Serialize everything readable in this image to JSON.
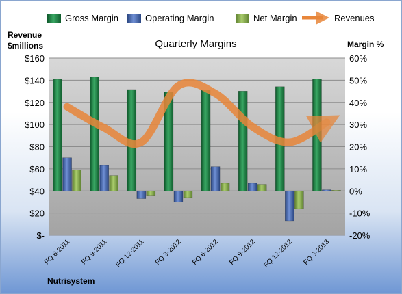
{
  "chart_data": {
    "type": "bar",
    "title": "Quarterly Margins",
    "left_axis_label": "Revenue\n$millions",
    "right_axis_label": "Margin %",
    "footer": "Nutrisystem",
    "categories": [
      "FQ 6-2011",
      "FQ 9-2011",
      "FQ 12-2011",
      "FQ 3-2012",
      "FQ 6-2012",
      "FQ 9-2012",
      "FQ 12-2012",
      "FQ 3-2013"
    ],
    "left_axis": {
      "min": 0,
      "max": 160,
      "step": 20,
      "tick_labels": [
        "$-",
        "$20",
        "$40",
        "$60",
        "$80",
        "$100",
        "$120",
        "$140",
        "$160"
      ]
    },
    "right_axis": {
      "min": -20,
      "max": 60,
      "step": 10,
      "tick_labels": [
        "-20%",
        "-10%",
        "0%",
        "10%",
        "20%",
        "30%",
        "40%",
        "50%",
        "60%"
      ]
    },
    "series": [
      {
        "name": "Gross Margin",
        "axis": "right",
        "kind": "bar",
        "color": "#2e8b57",
        "values": [
          50.4,
          51.4,
          45.8,
          44.7,
          45.6,
          45.1,
          47.1,
          50.5
        ]
      },
      {
        "name": "Operating Margin",
        "axis": "right",
        "kind": "bar",
        "color": "#4f6fb5",
        "values": [
          15,
          11.5,
          -3.5,
          -5,
          11,
          3.5,
          -13.5,
          0.5
        ]
      },
      {
        "name": "Net Margin",
        "axis": "right",
        "kind": "bar",
        "color": "#8fbc5a",
        "values": [
          9.5,
          7,
          -2,
          -3,
          3.5,
          3,
          -8,
          0.3
        ]
      },
      {
        "name": "Revenues",
        "axis": "left",
        "kind": "line",
        "color": "#e8863a",
        "values": [
          116,
          97,
          84,
          135,
          128,
          98,
          84,
          102
        ]
      }
    ],
    "legend_position": "top",
    "grid": true
  }
}
